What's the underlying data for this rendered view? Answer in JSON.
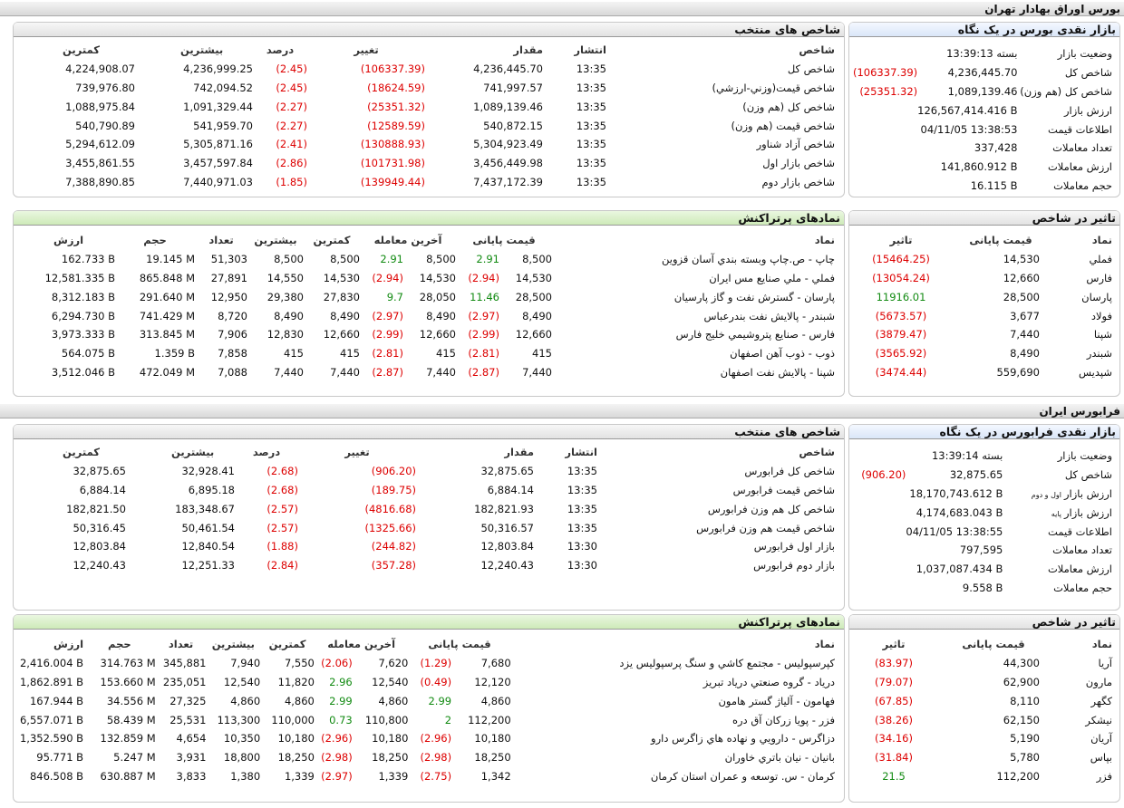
{
  "tse": {
    "section_title": "بورس اوراق بهادار تهران",
    "snapshot": {
      "title": "بازار نقدی بورس در یک نگاه",
      "rows": [
        {
          "label": "وضعیت بازار",
          "value": "بسته 13:39:13",
          "change": ""
        },
        {
          "label": "شاخص کل",
          "value": "4,236,445.70",
          "change": "(106337.39)"
        },
        {
          "label": "شاخص کل (هم وزن)",
          "value": "1,089,139.46",
          "change": "(25351.32)"
        },
        {
          "label": "ارزش بازار",
          "value": "126,567,414.416 B",
          "change": ""
        },
        {
          "label": "اطلاعات قیمت",
          "value": "04/11/05 13:38:53",
          "change": ""
        },
        {
          "label": "تعداد معاملات",
          "value": "337,428",
          "change": ""
        },
        {
          "label": "ارزش معاملات",
          "value": "141,860.912 B",
          "change": ""
        },
        {
          "label": "حجم معاملات",
          "value": "16.115 B",
          "change": ""
        }
      ]
    },
    "indices": {
      "title": "شاخص های منتخب",
      "headers": {
        "name": "شاخص",
        "time": "انتشار",
        "value": "مقدار",
        "change": "تغییر",
        "percent": "درصد",
        "high": "بیشترین",
        "low": "کمترین"
      },
      "rows": [
        {
          "name": "شاخص كل",
          "time": "13:35",
          "value": "4,236,445.70",
          "change": "(106337.39)",
          "percent": "(2.45)",
          "high": "4,236,999.25",
          "low": "4,224,908.07"
        },
        {
          "name": "شاخص قيمت(وزني-ارزشي)",
          "time": "13:35",
          "value": "741,997.57",
          "change": "(18624.59)",
          "percent": "(2.45)",
          "high": "742,094.52",
          "low": "739,976.80"
        },
        {
          "name": "شاخص كل (هم وزن)",
          "time": "13:35",
          "value": "1,089,139.46",
          "change": "(25351.32)",
          "percent": "(2.27)",
          "high": "1,091,329.44",
          "low": "1,088,975.84"
        },
        {
          "name": "شاخص قيمت (هم وزن)",
          "time": "13:35",
          "value": "540,872.15",
          "change": "(12589.59)",
          "percent": "(2.27)",
          "high": "541,959.70",
          "low": "540,790.89"
        },
        {
          "name": "شاخص آزاد شناور",
          "time": "13:35",
          "value": "5,304,923.49",
          "change": "(130888.93)",
          "percent": "(2.41)",
          "high": "5,305,871.16",
          "low": "5,294,612.09"
        },
        {
          "name": "شاخص بازار اول",
          "time": "13:35",
          "value": "3,456,449.98",
          "change": "(101731.98)",
          "percent": "(2.86)",
          "high": "3,457,597.84",
          "low": "3,455,861.55"
        },
        {
          "name": "شاخص بازار دوم",
          "time": "13:35",
          "value": "7,437,172.39",
          "change": "(139949.44)",
          "percent": "(1.85)",
          "high": "7,440,971.03",
          "low": "7,388,890.85"
        }
      ]
    },
    "impact": {
      "title": "تاثیر در شاخص",
      "headers": {
        "symbol": "نماد",
        "price": "قیمت پایانی",
        "effect": "تاثیر"
      },
      "rows": [
        {
          "symbol": "فملي",
          "price": "14,530",
          "effect": "(15464.25)",
          "pos": false
        },
        {
          "symbol": "فارس",
          "price": "12,660",
          "effect": "(13054.24)",
          "pos": false
        },
        {
          "symbol": "پارسان",
          "price": "28,500",
          "effect": "11916.01",
          "pos": true
        },
        {
          "symbol": "فولاد",
          "price": "3,677",
          "effect": "(5673.57)",
          "pos": false
        },
        {
          "symbol": "شپنا",
          "price": "7,440",
          "effect": "(3879.47)",
          "pos": false
        },
        {
          "symbol": "شبندر",
          "price": "8,490",
          "effect": "(3565.92)",
          "pos": false
        },
        {
          "symbol": "شپديس",
          "price": "559,690",
          "effect": "(3474.44)",
          "pos": false
        }
      ]
    },
    "active": {
      "title": "نمادهای پرتراکنش",
      "headers": {
        "symbol": "نماد",
        "close": "قیمت پایانی",
        "last": "آخرین معامله",
        "low": "کمترین",
        "high": "بیشترین",
        "count": "تعداد",
        "volume": "حجم",
        "value": "ارزش"
      },
      "rows": [
        {
          "symbol": "چاپ - ص.چاپ وبسته بندي آسان قزوين",
          "close": "8,500",
          "close_chg": "2.91",
          "last": "8,500",
          "last_chg": "2.91",
          "low": "8,500",
          "high": "8,500",
          "count": "51,303",
          "volume": "19.145 M",
          "value": "162.733 B",
          "pos": true
        },
        {
          "symbol": "فملي - ملي صنايع مس ايران",
          "close": "14,530",
          "close_chg": "(2.94)",
          "last": "14,530",
          "last_chg": "(2.94)",
          "low": "14,530",
          "high": "14,550",
          "count": "27,891",
          "volume": "865.848 M",
          "value": "12,581.335 B",
          "pos": false
        },
        {
          "symbol": "پارسان - گسترش نفت و گاز پارسيان",
          "close": "28,500",
          "close_chg": "11.46",
          "last": "28,050",
          "last_chg": "9.7",
          "low": "27,830",
          "high": "29,380",
          "count": "12,950",
          "volume": "291.640 M",
          "value": "8,312.183 B",
          "pos": true
        },
        {
          "symbol": "شبندر - پالايش نفت بندرعباس",
          "close": "8,490",
          "close_chg": "(2.97)",
          "last": "8,490",
          "last_chg": "(2.97)",
          "low": "8,490",
          "high": "8,490",
          "count": "8,720",
          "volume": "741.429 M",
          "value": "6,294.730 B",
          "pos": false
        },
        {
          "symbol": "فارس - صنايع پتروشيمي خليج فارس",
          "close": "12,660",
          "close_chg": "(2.99)",
          "last": "12,660",
          "last_chg": "(2.99)",
          "low": "12,660",
          "high": "12,830",
          "count": "7,906",
          "volume": "313.845 M",
          "value": "3,973.333 B",
          "pos": false
        },
        {
          "symbol": "ذوب - ذوب آهن اصفهان",
          "close": "415",
          "close_chg": "(2.81)",
          "last": "415",
          "last_chg": "(2.81)",
          "low": "415",
          "high": "415",
          "count": "7,858",
          "volume": "1.359 B",
          "value": "564.075 B",
          "pos": false
        },
        {
          "symbol": "شپنا - پالايش نفت اصفهان",
          "close": "7,440",
          "close_chg": "(2.87)",
          "last": "7,440",
          "last_chg": "(2.87)",
          "low": "7,440",
          "high": "7,440",
          "count": "7,088",
          "volume": "472.049 M",
          "value": "3,512.046 B",
          "pos": false
        }
      ]
    }
  },
  "ifb": {
    "section_title": "فرابورس ایران",
    "snapshot": {
      "title": "بازار نقدی فرابورس در یک نگاه",
      "rows": [
        {
          "label": "وضعیت بازار",
          "value": "بسته 13:39:14",
          "change": "",
          "small": ""
        },
        {
          "label": "شاخص کل",
          "value": "32,875.65",
          "change": "(906.20)",
          "small": ""
        },
        {
          "label": "ارزش بازار",
          "small": "اول و دوم",
          "value": "18,170,743.612 B",
          "change": ""
        },
        {
          "label": "ارزش بازار",
          "small": "پایه",
          "value": "4,174,683.043 B",
          "change": ""
        },
        {
          "label": "اطلاعات قیمت",
          "value": "04/11/05 13:38:55",
          "change": "",
          "small": ""
        },
        {
          "label": "تعداد معاملات",
          "value": "797,595",
          "change": "",
          "small": ""
        },
        {
          "label": "ارزش معاملات",
          "value": "1,037,087.434 B",
          "change": "",
          "small": ""
        },
        {
          "label": "حجم معاملات",
          "value": "9.558 B",
          "change": "",
          "small": ""
        }
      ]
    },
    "indices": {
      "title": "شاخص های منتخب",
      "headers": {
        "name": "شاخص",
        "time": "انتشار",
        "value": "مقدار",
        "change": "تغییر",
        "percent": "درصد",
        "high": "بیشترین",
        "low": "کمترین"
      },
      "rows": [
        {
          "name": "شاخص كل فرابورس",
          "time": "13:35",
          "value": "32,875.65",
          "change": "(906.20)",
          "percent": "(2.68)",
          "high": "32,928.41",
          "low": "32,875.65"
        },
        {
          "name": "شاخص قيمت فرابورس",
          "time": "13:35",
          "value": "6,884.14",
          "change": "(189.75)",
          "percent": "(2.68)",
          "high": "6,895.18",
          "low": "6,884.14"
        },
        {
          "name": "شاخص كل هم وزن فرابورس",
          "time": "13:35",
          "value": "182,821.93",
          "change": "(4816.68)",
          "percent": "(2.57)",
          "high": "183,348.67",
          "low": "182,821.50"
        },
        {
          "name": "شاخص قيمت هم وزن فرابورس",
          "time": "13:35",
          "value": "50,316.57",
          "change": "(1325.66)",
          "percent": "(2.57)",
          "high": "50,461.54",
          "low": "50,316.45"
        },
        {
          "name": "بازار اول فرابورس",
          "time": "13:30",
          "value": "12,803.84",
          "change": "(244.82)",
          "percent": "(1.88)",
          "high": "12,840.54",
          "low": "12,803.84"
        },
        {
          "name": "بازار دوم فرابورس",
          "time": "13:30",
          "value": "12,240.43",
          "change": "(357.28)",
          "percent": "(2.84)",
          "high": "12,251.33",
          "low": "12,240.43"
        }
      ]
    },
    "impact": {
      "title": "تاثیر در شاخص",
      "headers": {
        "symbol": "نماد",
        "price": "قیمت پایانی",
        "effect": "تاثیر"
      },
      "rows": [
        {
          "symbol": "آريا",
          "price": "44,300",
          "effect": "(83.97)",
          "pos": false
        },
        {
          "symbol": "مارون",
          "price": "62,900",
          "effect": "(79.07)",
          "pos": false
        },
        {
          "symbol": "كگهر",
          "price": "8,110",
          "effect": "(67.85)",
          "pos": false
        },
        {
          "symbol": "نيشكر",
          "price": "62,150",
          "effect": "(38.26)",
          "pos": false
        },
        {
          "symbol": "آريان",
          "price": "5,190",
          "effect": "(34.16)",
          "pos": false
        },
        {
          "symbol": "بپاس",
          "price": "5,780",
          "effect": "(31.84)",
          "pos": false
        },
        {
          "symbol": "فزر",
          "price": "112,200",
          "effect": "21.5",
          "pos": true
        }
      ]
    },
    "active": {
      "title": "نمادهای پرتراکنش",
      "headers": {
        "symbol": "نماد",
        "close": "قیمت پایانی",
        "last": "آخرین معامله",
        "low": "کمترین",
        "high": "بیشترین",
        "count": "تعداد",
        "volume": "حجم",
        "value": "ارزش"
      },
      "rows": [
        {
          "symbol": "كپرسپوليس - مجتمع كاشي و سنگ پرسپوليس يزد",
          "close": "7,680",
          "close_chg": "(1.29)",
          "last": "7,620",
          "last_chg": "(2.06)",
          "low": "7,550",
          "high": "7,940",
          "count": "345,881",
          "volume": "314.763 M",
          "value": "2,416.004 B",
          "pos": false
        },
        {
          "symbol": "درياد - گروه صنعتي درياد تبريز",
          "close": "12,120",
          "close_chg": "(0.49)",
          "last": "12,540",
          "last_chg": "2.96",
          "low": "11,820",
          "high": "12,540",
          "count": "235,051",
          "volume": "153.660 M",
          "value": "1,862.891 B",
          "pos": false,
          "last_pos": true
        },
        {
          "symbol": "فهامون - آلياژ گستر هامون",
          "close": "4,860",
          "close_chg": "2.99",
          "last": "4,860",
          "last_chg": "2.99",
          "low": "4,860",
          "high": "4,860",
          "count": "27,325",
          "volume": "34.556 M",
          "value": "167.944 B",
          "pos": true
        },
        {
          "symbol": "فزر - پويا زركان آق دره",
          "close": "112,200",
          "close_chg": "2",
          "last": "110,800",
          "last_chg": "0.73",
          "low": "110,000",
          "high": "113,300",
          "count": "25,531",
          "volume": "58.439 M",
          "value": "6,557.071 B",
          "pos": true
        },
        {
          "symbol": "دزاگرس - دارويي و نهاده هاي زاگرس دارو",
          "close": "10,180",
          "close_chg": "(2.96)",
          "last": "10,180",
          "last_chg": "(2.96)",
          "low": "10,180",
          "high": "10,350",
          "count": "4,654",
          "volume": "132.859 M",
          "value": "1,352.590 B",
          "pos": false
        },
        {
          "symbol": "بانيان - نيان باتري خاوران",
          "close": "18,250",
          "close_chg": "(2.98)",
          "last": "18,250",
          "last_chg": "(2.98)",
          "low": "18,250",
          "high": "18,800",
          "count": "3,931",
          "volume": "5.247 M",
          "value": "95.771 B",
          "pos": false
        },
        {
          "symbol": "كرمان - س. توسعه و عمران استان كرمان",
          "close": "1,342",
          "close_chg": "(2.75)",
          "last": "1,339",
          "last_chg": "(2.97)",
          "low": "1,339",
          "high": "1,380",
          "count": "3,833",
          "volume": "630.887 M",
          "value": "846.508 B",
          "pos": false
        }
      ]
    }
  }
}
